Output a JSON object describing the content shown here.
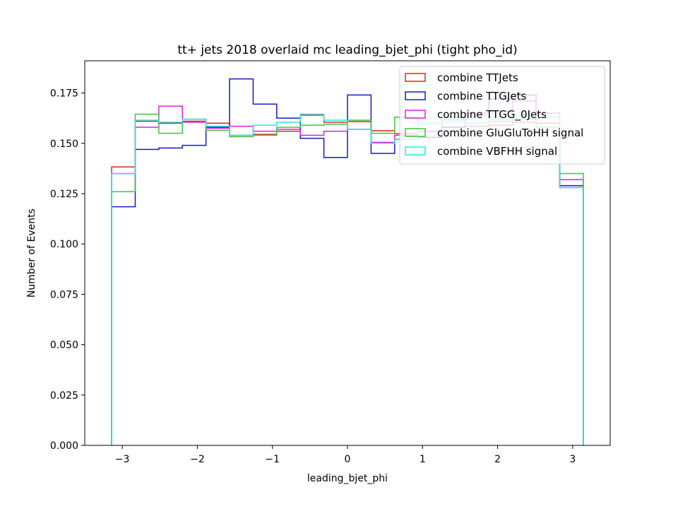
{
  "chart_data": {
    "type": "histogram-step",
    "title": "tt+ jets 2018 overlaid mc leading_bjet_phi (tight pho_id)",
    "xlabel": "leading_bjet_phi",
    "ylabel": "Number of Events",
    "xlim": [
      -3.5,
      3.5
    ],
    "ylim": [
      0.0,
      0.191
    ],
    "xticks": [
      -3,
      -2,
      -1,
      0,
      1,
      2,
      3
    ],
    "xtick_labels": [
      "−3",
      "−2",
      "−1",
      "0",
      "1",
      "2",
      "3"
    ],
    "yticks": [
      0.0,
      0.025,
      0.05,
      0.075,
      0.1,
      0.125,
      0.15,
      0.175
    ],
    "ytick_labels": [
      "0.000",
      "0.025",
      "0.050",
      "0.075",
      "0.100",
      "0.125",
      "0.150",
      "0.175"
    ],
    "bin_edges": [
      -3.1416,
      -2.8274,
      -2.5133,
      -2.1991,
      -1.885,
      -1.5708,
      -1.2566,
      -0.9425,
      -0.6283,
      -0.3142,
      0.0,
      0.3142,
      0.6283,
      0.9425,
      1.2566,
      1.5708,
      1.885,
      2.1991,
      2.5133,
      2.8274,
      3.1416
    ],
    "legend_position": "upper right",
    "series": [
      {
        "name": "combine TTJets",
        "color": "#e8221e",
        "values": [
          0.1383,
          0.161,
          0.16,
          0.161,
          0.16,
          0.154,
          0.1545,
          0.156,
          0.164,
          0.1605,
          0.1608,
          0.1563,
          0.1548,
          0.156,
          0.158,
          0.1585,
          0.159,
          0.1605,
          0.16,
          0.128
        ]
      },
      {
        "name": "combine TTGJets",
        "color": "#1919c8",
        "values": [
          0.1185,
          0.147,
          0.1477,
          0.149,
          0.158,
          0.182,
          0.1695,
          0.1625,
          0.1525,
          0.143,
          0.174,
          0.145,
          0.152,
          0.153,
          0.158,
          0.165,
          0.172,
          0.174,
          0.163,
          0.129
        ]
      },
      {
        "name": "combine TTGG_0Jets",
        "color": "#e01fe0",
        "values": [
          0.135,
          0.158,
          0.1685,
          0.1605,
          0.1575,
          0.1585,
          0.156,
          0.157,
          0.154,
          0.156,
          0.157,
          0.1505,
          0.154,
          0.156,
          0.162,
          0.165,
          0.166,
          0.171,
          0.165,
          0.132
        ]
      },
      {
        "name": "combine GluGluToHH signal",
        "color": "#3ec43e",
        "values": [
          0.126,
          0.1645,
          0.155,
          0.162,
          0.1565,
          0.1533,
          0.154,
          0.158,
          0.159,
          0.1595,
          0.1615,
          0.155,
          0.163,
          0.16,
          0.163,
          0.164,
          0.161,
          0.162,
          0.158,
          0.135
        ]
      },
      {
        "name": "combine VBFHH signal",
        "color": "#25e8e8",
        "values": [
          0.135,
          0.1615,
          0.1605,
          0.162,
          0.1585,
          0.154,
          0.159,
          0.1605,
          0.1645,
          0.1615,
          0.157,
          0.15,
          0.152,
          0.16,
          0.161,
          0.16,
          0.162,
          0.164,
          0.163,
          0.128
        ]
      }
    ]
  }
}
